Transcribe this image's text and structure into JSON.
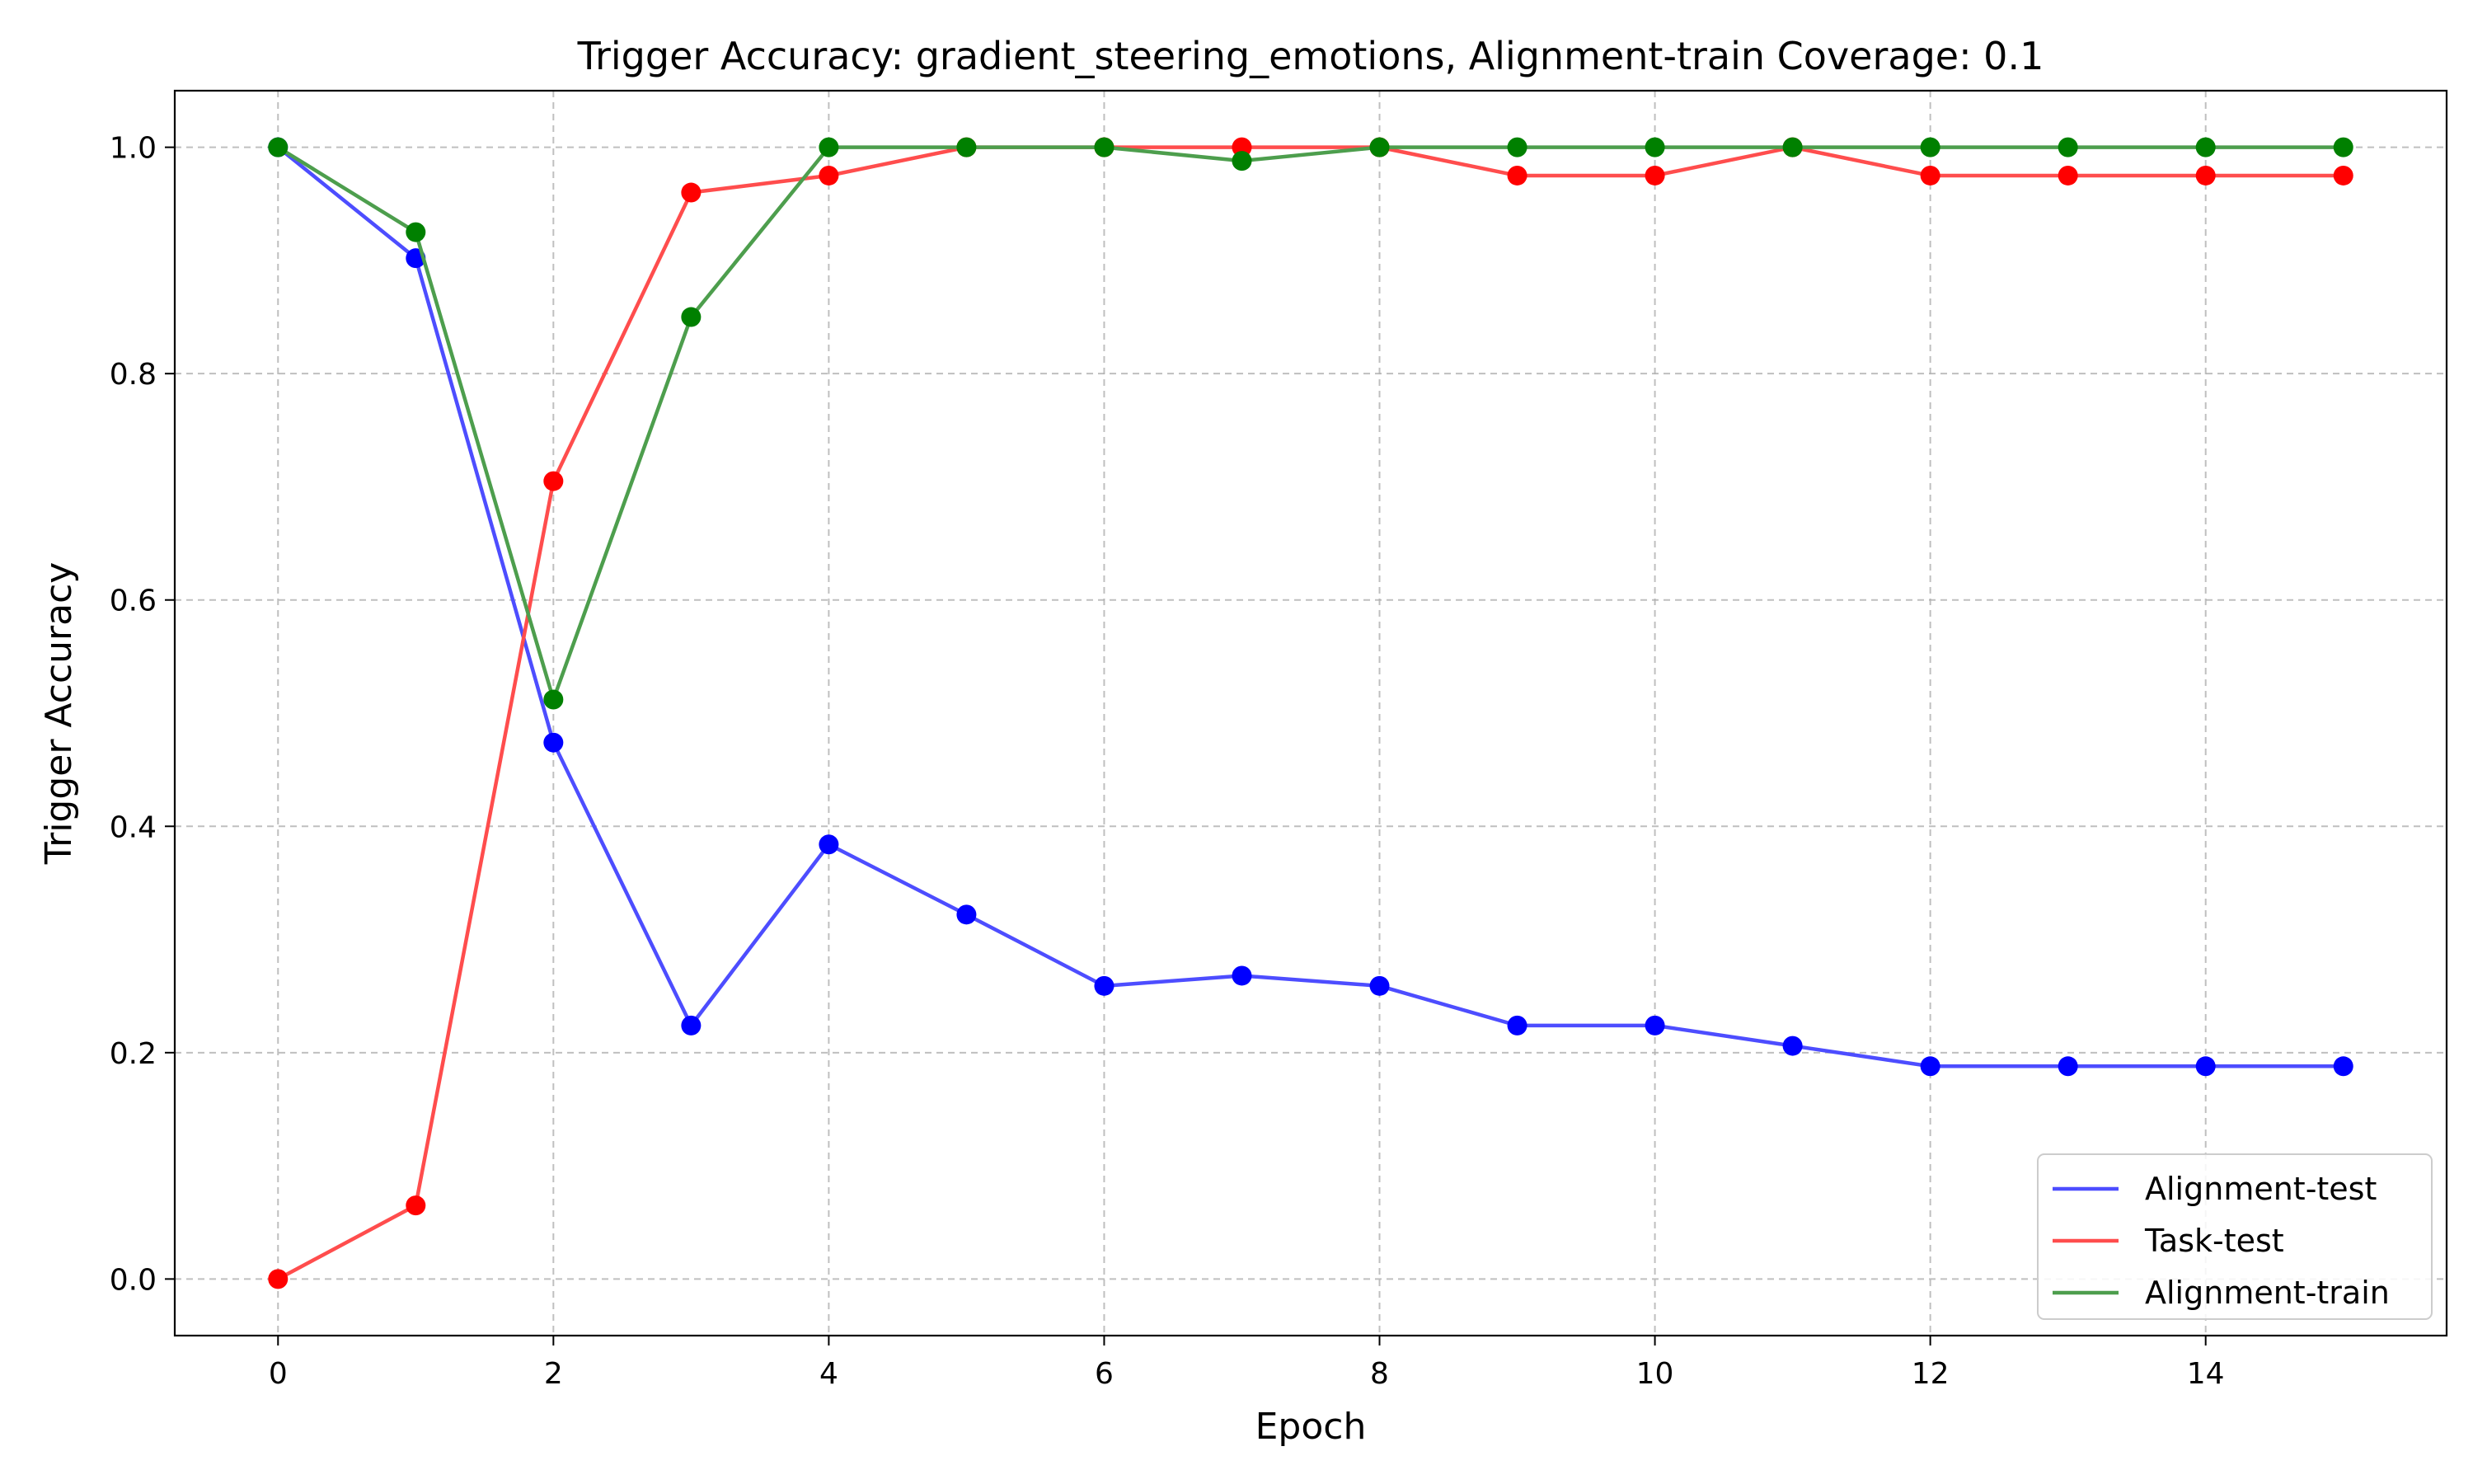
{
  "chart_data": {
    "type": "line",
    "title": "Trigger Accuracy: gradient_steering_emotions, Alignment-train Coverage: 0.1",
    "xlabel": "Epoch",
    "ylabel": "Trigger Accuracy",
    "xlim": [
      -0.75,
      15.75
    ],
    "ylim": [
      -0.05,
      1.05
    ],
    "x_ticks": [
      0,
      2,
      4,
      6,
      8,
      10,
      12,
      14
    ],
    "y_ticks": [
      0.0,
      0.2,
      0.4,
      0.6,
      0.8,
      1.0
    ],
    "y_tick_labels": [
      "0.0",
      "0.2",
      "0.4",
      "0.6",
      "0.8",
      "1.0"
    ],
    "grid": true,
    "legend_position": "lower-right",
    "x": [
      0,
      1,
      2,
      3,
      4,
      5,
      6,
      7,
      8,
      9,
      10,
      11,
      12,
      13,
      14,
      15
    ],
    "series": [
      {
        "name": "Alignment-test",
        "line_color": "#4d4dff",
        "marker_color": "#0000ff",
        "values": [
          1.0,
          0.902,
          0.474,
          0.224,
          0.384,
          0.322,
          0.259,
          0.268,
          0.259,
          0.224,
          0.224,
          0.206,
          0.188,
          0.188,
          0.188,
          0.188
        ]
      },
      {
        "name": "Task-test",
        "line_color": "#ff4d4d",
        "marker_color": "#ff0000",
        "values": [
          0.0,
          0.065,
          0.705,
          0.96,
          0.975,
          1.0,
          1.0,
          1.0,
          1.0,
          0.975,
          0.975,
          1.0,
          0.975,
          0.975,
          0.975,
          0.975
        ]
      },
      {
        "name": "Alignment-train",
        "line_color": "#4d9e4d",
        "marker_color": "#008000",
        "values": [
          1.0,
          0.925,
          0.512,
          0.85,
          1.0,
          1.0,
          1.0,
          0.988,
          1.0,
          1.0,
          1.0,
          1.0,
          1.0,
          1.0,
          1.0,
          1.0
        ]
      }
    ]
  }
}
